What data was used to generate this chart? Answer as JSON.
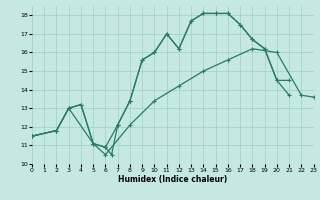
{
  "xlabel": "Humidex (Indice chaleur)",
  "xlim": [
    0,
    23
  ],
  "ylim": [
    10,
    18.5
  ],
  "yticks": [
    10,
    11,
    12,
    13,
    14,
    15,
    16,
    17,
    18
  ],
  "xticks": [
    0,
    1,
    2,
    3,
    4,
    5,
    6,
    7,
    8,
    9,
    10,
    11,
    12,
    13,
    14,
    15,
    16,
    17,
    18,
    19,
    20,
    21,
    22,
    23
  ],
  "background_color": "#c5e8e2",
  "grid_color": "#9ecfc7",
  "line_color": "#2a7a68",
  "curve1_x": [
    0,
    2,
    3,
    4,
    5,
    6,
    7,
    8,
    9,
    10,
    11,
    12,
    13,
    14,
    15,
    16,
    17,
    18,
    19,
    20,
    21
  ],
  "curve1_y": [
    11.5,
    11.8,
    13.0,
    13.2,
    11.1,
    10.9,
    12.1,
    13.4,
    15.6,
    16.0,
    17.0,
    16.2,
    17.7,
    18.1,
    18.1,
    18.1,
    17.5,
    16.7,
    16.2,
    14.5,
    13.7
  ],
  "curve2_x": [
    0,
    2,
    3,
    4,
    5,
    6,
    6.5,
    7,
    8,
    9,
    10,
    11,
    12,
    13,
    14,
    15,
    16,
    17,
    18,
    19,
    20,
    21
  ],
  "curve2_y": [
    11.5,
    11.8,
    13.0,
    13.2,
    11.1,
    10.9,
    10.5,
    12.1,
    13.4,
    15.6,
    16.0,
    17.0,
    16.2,
    17.7,
    18.1,
    18.1,
    18.1,
    17.5,
    16.7,
    16.2,
    14.5,
    14.5
  ],
  "curve3_x": [
    0,
    2,
    3,
    5,
    6,
    8,
    10,
    12,
    14,
    16,
    18,
    20,
    22,
    23
  ],
  "curve3_y": [
    11.5,
    11.8,
    13.0,
    11.1,
    10.5,
    12.1,
    13.4,
    14.2,
    15.0,
    15.6,
    16.2,
    16.0,
    13.7,
    13.6
  ]
}
